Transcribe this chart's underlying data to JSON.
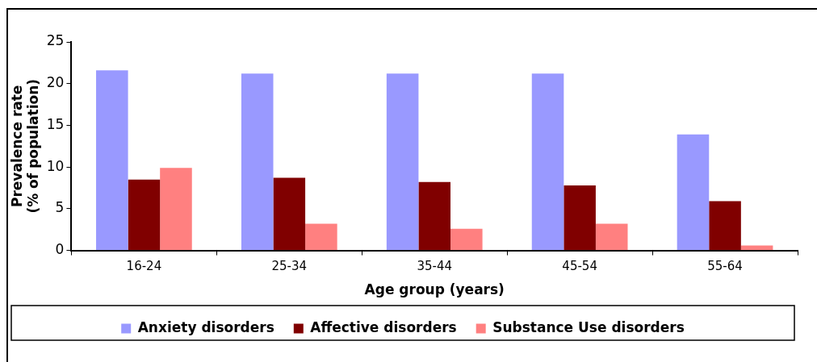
{
  "chart_data": {
    "type": "bar",
    "xlabel": "Age group (years)",
    "ylabel": "Prevalence rate\n(% of population)",
    "categories": [
      "16-24",
      "25-34",
      "35-44",
      "45-54",
      "55-64"
    ],
    "series": [
      {
        "name": "Anxiety disorders",
        "color": "#9999ff",
        "values": [
          21.6,
          21.2,
          21.2,
          21.2,
          13.9
        ]
      },
      {
        "name": "Affective disorders",
        "color": "#800000",
        "values": [
          8.5,
          8.7,
          8.2,
          7.8,
          5.9
        ]
      },
      {
        "name": "Substance Use disorders",
        "color": "#ff8080",
        "values": [
          9.9,
          3.2,
          2.6,
          3.2,
          0.6
        ]
      }
    ],
    "ylim": [
      0,
      25
    ],
    "yticks": [
      0,
      5,
      10,
      15,
      20,
      25
    ],
    "grid": false,
    "legend": "bottom"
  }
}
